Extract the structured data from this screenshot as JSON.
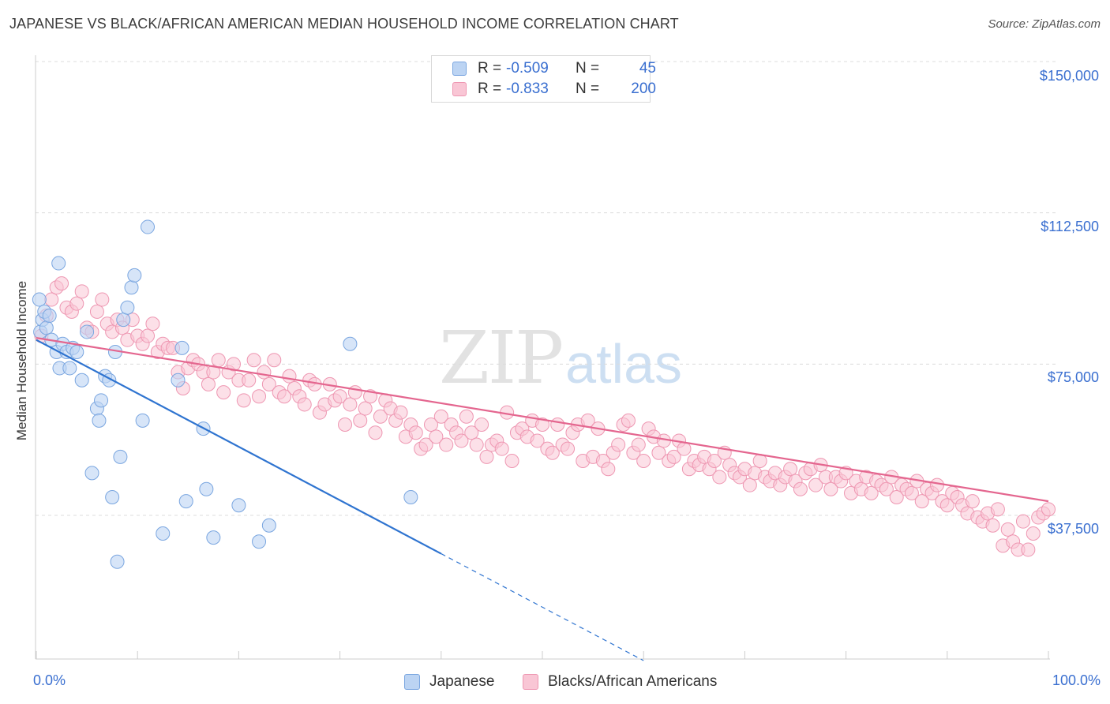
{
  "header": {
    "title": "JAPANESE VS BLACK/AFRICAN AMERICAN MEDIAN HOUSEHOLD INCOME CORRELATION CHART",
    "source": "Source: ZipAtlas.com"
  },
  "watermark": {
    "zip": "ZIP",
    "atlas": "atlas"
  },
  "legend": {
    "rows": [
      {
        "r_label": "R =",
        "r_value": "-0.509",
        "n_label": "N =",
        "n_value": "45",
        "color": "#a9c8f0"
      },
      {
        "r_label": "R =",
        "r_value": "-0.833",
        "n_label": "N =",
        "n_value": "200",
        "color": "#f7b8cb"
      }
    ]
  },
  "bottom_legend": {
    "japanese": "Japanese",
    "black": "Blacks/African Americans"
  },
  "axes": {
    "ylabel": "Median Household Income",
    "y_ticks": [
      "$150,000",
      "$112,500",
      "$75,000",
      "$37,500"
    ],
    "x_ticks": [
      "0.0%",
      "100.0%"
    ]
  },
  "colors": {
    "japanese_fill": "#bcd4f3",
    "japanese_stroke": "#7aa6e0",
    "japanese_line": "#2f74d0",
    "black_fill": "#f9c6d5",
    "black_stroke": "#ee97b2",
    "black_line": "#e4668f",
    "grid": "#dcdcdc",
    "axis_text": "#3a6fd0"
  },
  "chart_data": {
    "type": "scatter",
    "title": "JAPANESE VS BLACK/AFRICAN AMERICAN MEDIAN HOUSEHOLD INCOME CORRELATION CHART",
    "xlabel": "",
    "ylabel": "Median Household Income",
    "xlim": [
      0,
      100
    ],
    "ylim": [
      15000,
      155000
    ],
    "y_gridlines": [
      37500,
      75000,
      112500,
      150000
    ],
    "grid": true,
    "legend_position": "top-center",
    "series": [
      {
        "name": "Japanese",
        "r": -0.509,
        "n": 45,
        "trend": {
          "x0": 0,
          "y0": 81000,
          "x1": 40,
          "y1": 28000,
          "dashed_to_x": 60
        },
        "points": [
          [
            0.3,
            91
          ],
          [
            0.4,
            83
          ],
          [
            0.6,
            86
          ],
          [
            0.8,
            88
          ],
          [
            1.0,
            84
          ],
          [
            1.3,
            87
          ],
          [
            1.5,
            81
          ],
          [
            2,
            78
          ],
          [
            2.3,
            74
          ],
          [
            2.6,
            80
          ],
          [
            3,
            78
          ],
          [
            3.3,
            74
          ],
          [
            3.6,
            79
          ],
          [
            4,
            78
          ],
          [
            4.5,
            71
          ],
          [
            5,
            83
          ],
          [
            5.5,
            48
          ],
          [
            6.0,
            64
          ],
          [
            6.2,
            61
          ],
          [
            6.4,
            66
          ],
          [
            6.8,
            72
          ],
          [
            7.2,
            71
          ],
          [
            7.5,
            42
          ],
          [
            7.8,
            78
          ],
          [
            8.0,
            26
          ],
          [
            8.3,
            52
          ],
          [
            8.6,
            86
          ],
          [
            9.0,
            89
          ],
          [
            9.4,
            94
          ],
          [
            9.7,
            97
          ],
          [
            10.5,
            61
          ],
          [
            12.5,
            33
          ],
          [
            14,
            71
          ],
          [
            14.4,
            79
          ],
          [
            14.8,
            41
          ],
          [
            16.5,
            59
          ],
          [
            16.8,
            44
          ],
          [
            17.5,
            32
          ],
          [
            20,
            40
          ],
          [
            22,
            31
          ],
          [
            23,
            35
          ],
          [
            31,
            80
          ],
          [
            37,
            42
          ],
          [
            2.2,
            100
          ],
          [
            11,
            109
          ]
        ]
      },
      {
        "name": "Blacks/African Americans",
        "r": -0.833,
        "n": 200,
        "trend": {
          "x0": 0,
          "y0": 81500,
          "x1": 100,
          "y1": 41000
        },
        "points": [
          [
            0.5,
            82
          ],
          [
            1.0,
            87
          ],
          [
            1.5,
            91
          ],
          [
            2.0,
            94
          ],
          [
            2.5,
            95
          ],
          [
            3.0,
            89
          ],
          [
            3.5,
            88
          ],
          [
            4.0,
            90
          ],
          [
            4.5,
            93
          ],
          [
            5.0,
            84
          ],
          [
            5.5,
            83
          ],
          [
            6.0,
            88
          ],
          [
            6.5,
            91
          ],
          [
            7.0,
            85
          ],
          [
            7.5,
            83
          ],
          [
            8.0,
            86
          ],
          [
            8.5,
            84
          ],
          [
            9.0,
            81
          ],
          [
            9.5,
            86
          ],
          [
            10.0,
            82
          ],
          [
            10.5,
            80
          ],
          [
            11.0,
            82
          ],
          [
            11.5,
            85
          ],
          [
            12.0,
            78
          ],
          [
            12.5,
            80
          ],
          [
            13.0,
            79
          ],
          [
            13.5,
            79
          ],
          [
            14.0,
            73
          ],
          [
            14.5,
            69
          ],
          [
            15.0,
            74
          ],
          [
            15.5,
            76
          ],
          [
            16.0,
            75
          ],
          [
            16.5,
            73
          ],
          [
            17.0,
            70
          ],
          [
            17.5,
            73
          ],
          [
            18.0,
            76
          ],
          [
            18.5,
            68
          ],
          [
            19.0,
            73
          ],
          [
            19.5,
            75
          ],
          [
            20.0,
            71
          ],
          [
            20.5,
            66
          ],
          [
            21.0,
            71
          ],
          [
            21.5,
            76
          ],
          [
            22.0,
            67
          ],
          [
            22.5,
            73
          ],
          [
            23.0,
            70
          ],
          [
            23.5,
            76
          ],
          [
            24.0,
            68
          ],
          [
            24.5,
            67
          ],
          [
            25.0,
            72
          ],
          [
            25.5,
            69
          ],
          [
            26.0,
            67
          ],
          [
            26.5,
            65
          ],
          [
            27.0,
            71
          ],
          [
            27.5,
            70
          ],
          [
            28.0,
            63
          ],
          [
            28.5,
            65
          ],
          [
            29.0,
            70
          ],
          [
            29.5,
            66
          ],
          [
            30.0,
            67
          ],
          [
            30.5,
            60
          ],
          [
            31.0,
            65
          ],
          [
            31.5,
            68
          ],
          [
            32.0,
            61
          ],
          [
            32.5,
            64
          ],
          [
            33.0,
            67
          ],
          [
            33.5,
            58
          ],
          [
            34.0,
            62
          ],
          [
            34.5,
            66
          ],
          [
            35.0,
            64
          ],
          [
            35.5,
            61
          ],
          [
            36.0,
            63
          ],
          [
            36.5,
            57
          ],
          [
            37.0,
            60
          ],
          [
            37.5,
            58
          ],
          [
            38.0,
            54
          ],
          [
            38.5,
            55
          ],
          [
            39.0,
            60
          ],
          [
            39.5,
            57
          ],
          [
            40.0,
            62
          ],
          [
            40.5,
            55
          ],
          [
            41.0,
            60
          ],
          [
            41.5,
            58
          ],
          [
            42.0,
            56
          ],
          [
            42.5,
            62
          ],
          [
            43.0,
            58
          ],
          [
            43.5,
            55
          ],
          [
            44.0,
            60
          ],
          [
            44.5,
            52
          ],
          [
            45.0,
            55
          ],
          [
            45.5,
            56
          ],
          [
            46.0,
            54
          ],
          [
            46.5,
            63
          ],
          [
            47.0,
            51
          ],
          [
            47.5,
            58
          ],
          [
            48.0,
            59
          ],
          [
            48.5,
            57
          ],
          [
            49.0,
            61
          ],
          [
            49.5,
            56
          ],
          [
            50.0,
            60
          ],
          [
            50.5,
            54
          ],
          [
            51.0,
            53
          ],
          [
            51.5,
            60
          ],
          [
            52.0,
            55
          ],
          [
            52.5,
            54
          ],
          [
            53.0,
            58
          ],
          [
            53.5,
            60
          ],
          [
            54.0,
            51
          ],
          [
            54.5,
            61
          ],
          [
            55.0,
            52
          ],
          [
            55.5,
            59
          ],
          [
            56.0,
            51
          ],
          [
            56.5,
            49
          ],
          [
            57.0,
            53
          ],
          [
            57.5,
            55
          ],
          [
            58.0,
            60
          ],
          [
            58.5,
            61
          ],
          [
            59.0,
            53
          ],
          [
            59.5,
            55
          ],
          [
            60.0,
            51
          ],
          [
            60.5,
            59
          ],
          [
            61.0,
            57
          ],
          [
            61.5,
            53
          ],
          [
            62.0,
            56
          ],
          [
            62.5,
            51
          ],
          [
            63.0,
            52
          ],
          [
            63.5,
            56
          ],
          [
            64.0,
            54
          ],
          [
            64.5,
            49
          ],
          [
            65.0,
            51
          ],
          [
            65.5,
            50
          ],
          [
            66.0,
            52
          ],
          [
            66.5,
            49
          ],
          [
            67.0,
            51
          ],
          [
            67.5,
            47
          ],
          [
            68.0,
            53
          ],
          [
            68.5,
            50
          ],
          [
            69.0,
            48
          ],
          [
            69.5,
            47
          ],
          [
            70.0,
            49
          ],
          [
            70.5,
            45
          ],
          [
            71.0,
            48
          ],
          [
            71.5,
            51
          ],
          [
            72.0,
            47
          ],
          [
            72.5,
            46
          ],
          [
            73.0,
            48
          ],
          [
            73.5,
            45
          ],
          [
            74.0,
            47
          ],
          [
            74.5,
            49
          ],
          [
            75.0,
            46
          ],
          [
            75.5,
            44
          ],
          [
            76.0,
            48
          ],
          [
            76.5,
            49
          ],
          [
            77.0,
            45
          ],
          [
            77.5,
            50
          ],
          [
            78.0,
            47
          ],
          [
            78.5,
            44
          ],
          [
            79.0,
            47
          ],
          [
            79.5,
            46
          ],
          [
            80.0,
            48
          ],
          [
            80.5,
            43
          ],
          [
            81.0,
            46
          ],
          [
            81.5,
            44
          ],
          [
            82.0,
            47
          ],
          [
            82.5,
            43
          ],
          [
            83.0,
            46
          ],
          [
            83.5,
            45
          ],
          [
            84.0,
            44
          ],
          [
            84.5,
            47
          ],
          [
            85.0,
            42
          ],
          [
            85.5,
            45
          ],
          [
            86.0,
            44
          ],
          [
            86.5,
            43
          ],
          [
            87.0,
            46
          ],
          [
            87.5,
            41
          ],
          [
            88.0,
            44
          ],
          [
            88.5,
            43
          ],
          [
            89.0,
            45
          ],
          [
            89.5,
            41
          ],
          [
            90.0,
            40
          ],
          [
            90.5,
            43
          ],
          [
            91.0,
            42
          ],
          [
            91.5,
            40
          ],
          [
            92.0,
            38
          ],
          [
            92.5,
            41
          ],
          [
            93.0,
            37
          ],
          [
            93.5,
            36
          ],
          [
            94.0,
            38
          ],
          [
            94.5,
            35
          ],
          [
            95.0,
            39
          ],
          [
            95.5,
            30
          ],
          [
            96.0,
            34
          ],
          [
            96.5,
            31
          ],
          [
            97.0,
            29
          ],
          [
            97.5,
            36
          ],
          [
            98.0,
            29
          ],
          [
            98.5,
            33
          ],
          [
            99.0,
            37
          ],
          [
            99.5,
            38
          ],
          [
            100,
            39
          ]
        ]
      }
    ]
  }
}
